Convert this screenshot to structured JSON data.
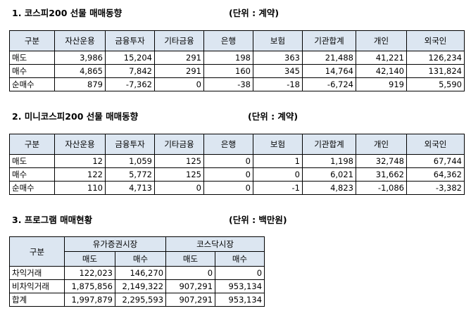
{
  "section1": {
    "title": "1. 코스피200 선물 매매동향",
    "unit": "(단위 : 계약)",
    "headers": [
      "구분",
      "자산운용",
      "금융투자",
      "기타금융",
      "은행",
      "보험",
      "기관합계",
      "개인",
      "외국인"
    ],
    "rows": [
      [
        "매도",
        "3,986",
        "15,204",
        "291",
        "198",
        "363",
        "21,488",
        "41,221",
        "126,234"
      ],
      [
        "매수",
        "4,865",
        "7,842",
        "291",
        "160",
        "345",
        "14,764",
        "42,140",
        "131,824"
      ],
      [
        "순매수",
        "879",
        "-7,362",
        "0",
        "-38",
        "-18",
        "-6,724",
        "919",
        "5,590"
      ]
    ]
  },
  "section2": {
    "title": "2. 미니코스피200 선물 매매동향",
    "unit": "(단위 : 계약)",
    "headers": [
      "구분",
      "자산운용",
      "금융투자",
      "기타금융",
      "은행",
      "보험",
      "기관합계",
      "개인",
      "외국인"
    ],
    "rows": [
      [
        "매도",
        "12",
        "1,059",
        "125",
        "0",
        "1",
        "1,198",
        "32,748",
        "67,744"
      ],
      [
        "매수",
        "122",
        "5,772",
        "125",
        "0",
        "0",
        "6,021",
        "31,662",
        "64,362"
      ],
      [
        "순매수",
        "110",
        "4,713",
        "0",
        "0",
        "-1",
        "4,823",
        "-1,086",
        "-3,382"
      ]
    ]
  },
  "section3": {
    "title": "3. 프로그램 매매현황",
    "unit": "(단위 : 백만원)",
    "header_category": "구분",
    "group_headers": [
      "유가증권시장",
      "코스닥시장"
    ],
    "sub_headers": [
      "매도",
      "매수",
      "매도",
      "매수"
    ],
    "rows": [
      [
        "차익거래",
        "122,023",
        "146,270",
        "0",
        "0"
      ],
      [
        "비차익거래",
        "1,875,856",
        "2,149,322",
        "907,291",
        "953,134"
      ],
      [
        "합계",
        "1,997,879",
        "2,295,593",
        "907,291",
        "953,134"
      ]
    ]
  }
}
